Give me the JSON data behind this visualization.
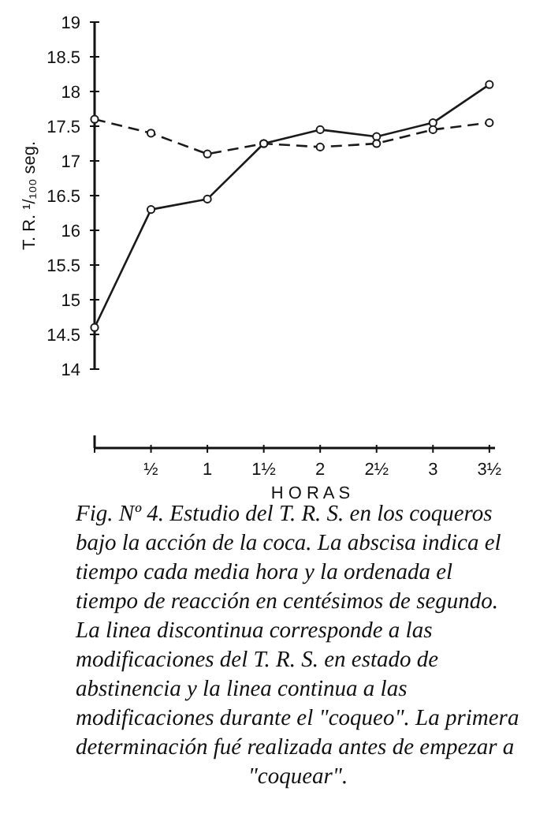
{
  "chart_data": {
    "type": "line",
    "ylabel": "T. R.  ¹/₁₀₀ seg.",
    "xlabel": "H O R A S",
    "x": [
      0,
      0.5,
      1,
      1.5,
      2,
      2.5,
      3,
      3.5
    ],
    "series": [
      {
        "color": "#1a1a1a",
        "line_style": "solid",
        "values": [
          14.6,
          16.3,
          16.45,
          17.25,
          17.45,
          17.35,
          17.55,
          18.1
        ]
      },
      {
        "color": "#1a1a1a",
        "line_style": "dashed",
        "values": [
          17.6,
          17.4,
          17.1,
          17.25,
          17.2,
          17.25,
          17.45,
          17.55
        ]
      }
    ],
    "xlim": [
      0,
      3.55
    ],
    "xticks": [
      {
        "value": 0,
        "label": null
      },
      {
        "value": 0.5,
        "label": "½"
      },
      {
        "value": 1,
        "label": "1"
      },
      {
        "value": 1.5,
        "label": "1½"
      },
      {
        "value": 2,
        "label": "2"
      },
      {
        "value": 2.5,
        "label": "2½"
      },
      {
        "value": 3,
        "label": "3"
      },
      {
        "value": 3.5,
        "label": "3½"
      }
    ],
    "ylim": [
      14,
      19
    ],
    "yticks": [
      14,
      14.5,
      15,
      15.5,
      16,
      16.5,
      17,
      17.5,
      18,
      18.5,
      19
    ],
    "marker": "circle",
    "grid": false,
    "annotations": [
      "Fig. Nº 4.  Estudio del T. R. S. en los coqueros bajo la acción de la coca.  La abscisa indica el tiempo cada media hora y la ordenada el tiempo de reacción en centésimos de segundo.  La linea discontinua corresponde a las modificaciones del T. R. S. en estado de abstinencia y la linea continua a las modificaciones durante el \"coqueo\".  La primera determinación fué realizada antes de empezar a \"coquear\"."
    ]
  }
}
